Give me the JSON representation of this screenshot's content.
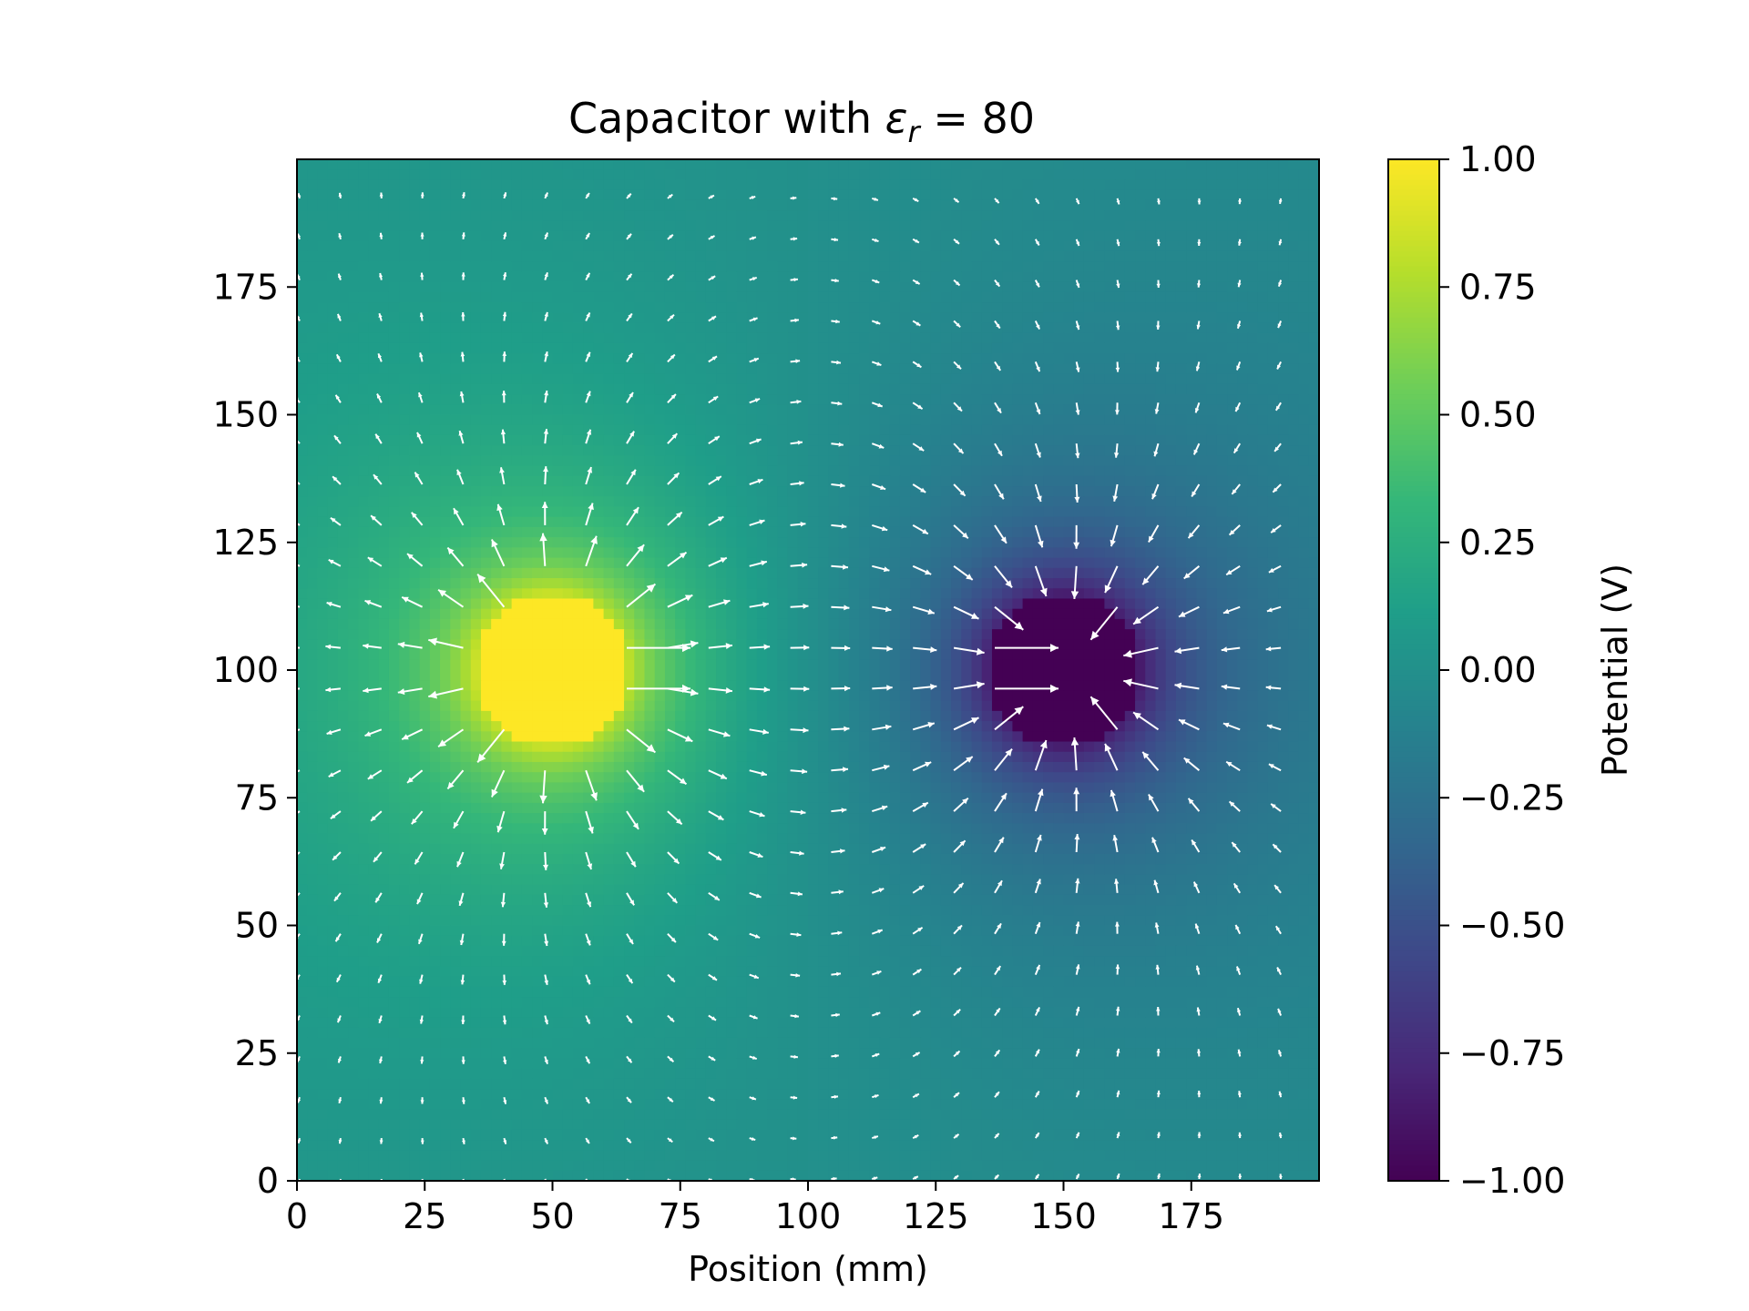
{
  "chart_data": {
    "type": "heatmap",
    "title_prefix": "Capacitor with ",
    "title_symbol": "ε",
    "title_subscript": "r",
    "title_suffix": " = 80",
    "xlabel": "Position (mm)",
    "ylabel": "",
    "xlim": [
      0,
      200
    ],
    "ylim": [
      0,
      200
    ],
    "xticks": [
      "0",
      "25",
      "50",
      "75",
      "100",
      "125",
      "150",
      "175"
    ],
    "yticks": [
      "0",
      "25",
      "50",
      "75",
      "100",
      "125",
      "150",
      "175"
    ],
    "xtick_values": [
      0,
      25,
      50,
      75,
      100,
      125,
      150,
      175
    ],
    "ytick_values": [
      0,
      25,
      50,
      75,
      100,
      125,
      150,
      175
    ],
    "colormap": "viridis",
    "colorbar": {
      "label": "Potential (V)",
      "range": [
        -1.0,
        1.0
      ],
      "ticks": [
        "−1.00",
        "−0.75",
        "−0.50",
        "−0.25",
        "0.00",
        "0.25",
        "0.50",
        "0.75",
        "1.00"
      ],
      "tick_values": [
        -1.0,
        -0.75,
        -0.5,
        -0.25,
        0.0,
        0.25,
        0.5,
        0.75,
        1.0
      ]
    },
    "conductors": [
      {
        "name": "positive",
        "center_mm": [
          50,
          100
        ],
        "radius_mm": 15,
        "potential_V": 1.0
      },
      {
        "name": "negative",
        "center_mm": [
          150,
          100
        ],
        "radius_mm": 15,
        "potential_V": -1.0
      }
    ],
    "quiver": {
      "field": "E = -grad(V)",
      "color": "#ffffff",
      "grid_start_mm": 0,
      "grid_step_mm": 8
    }
  },
  "colors": {
    "viridis_stops": [
      "#440154",
      "#482878",
      "#3e4989",
      "#31688e",
      "#26828e",
      "#1f9e89",
      "#35b779",
      "#6ece58",
      "#b5de2b",
      "#fde725"
    ],
    "arrow": "#ffffff",
    "axes": "#000000"
  }
}
